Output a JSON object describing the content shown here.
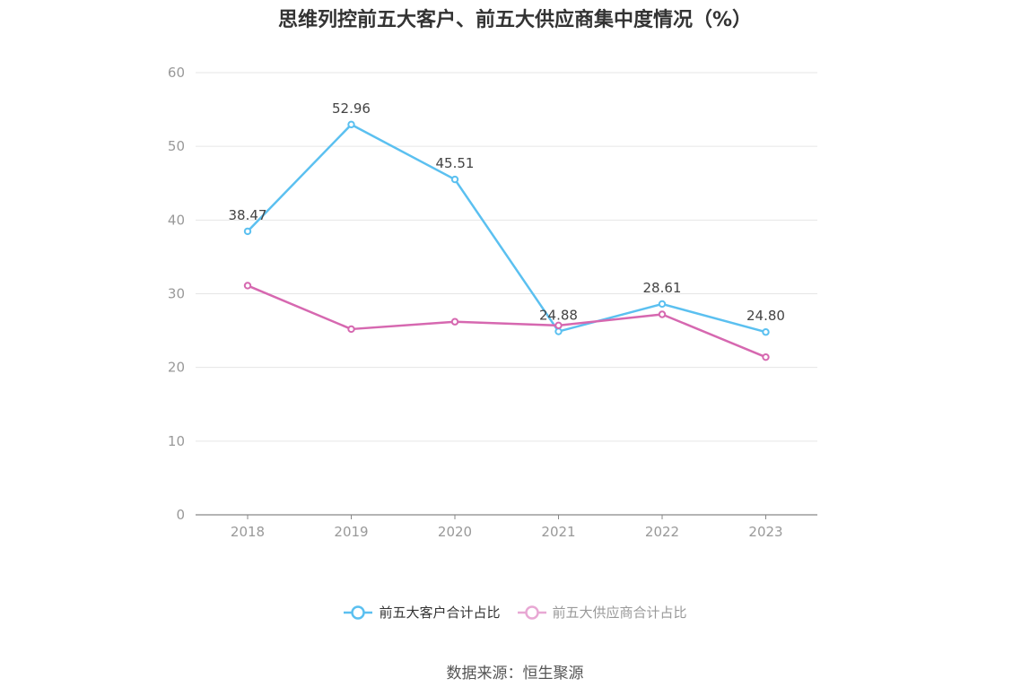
{
  "title": "思维列控前五大客户、前五大供应商集中度情况（%）",
  "source": "数据来源：恒生聚源",
  "chart_data": {
    "type": "line",
    "x": [
      "2018",
      "2019",
      "2020",
      "2021",
      "2022",
      "2023"
    ],
    "ylim": [
      0,
      60
    ],
    "yticks": [
      0,
      10,
      20,
      30,
      40,
      50,
      60
    ],
    "grid": true,
    "legend_position": "bottom",
    "series": [
      {
        "name": "前五大客户合计占比",
        "values": [
          38.47,
          52.96,
          45.51,
          24.88,
          28.61,
          24.8
        ],
        "labels": [
          "38.47",
          "52.96",
          "45.51",
          "24.88",
          "28.61",
          "24.80"
        ],
        "color": "#5bc0f0",
        "legend_text_color": "#333333"
      },
      {
        "name": "前五大供应商合计占比",
        "values": [
          31.1,
          25.2,
          26.2,
          25.7,
          27.2,
          21.4
        ],
        "labels": [],
        "color": "#d668b0",
        "legend_color": "#e8a8d4",
        "legend_text_color": "#999999"
      }
    ]
  }
}
